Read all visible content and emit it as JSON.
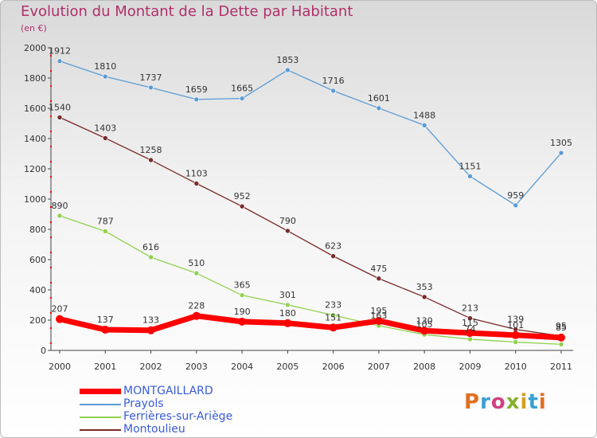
{
  "title": "Evolution du Montant de la Dette par Habitant",
  "subtitle": "(en €)",
  "logo_text": "Proxiti",
  "logo_colors": [
    "#e07020",
    "#3aa0d0",
    "#d04080",
    "#88b030",
    "#d0a020",
    "#3aa0d0",
    "#e07020"
  ],
  "chart_data": {
    "type": "line",
    "x": [
      "2000",
      "2001",
      "2002",
      "2003",
      "2004",
      "2005",
      "2006",
      "2007",
      "2008",
      "2009",
      "2010",
      "2011"
    ],
    "ylim": [
      0,
      2000
    ],
    "yticks": [
      "0",
      "200",
      "400",
      "600",
      "800",
      "1000",
      "1200",
      "1400",
      "1600",
      "1800",
      "2000"
    ],
    "grid": false,
    "legend_position": "bottom-left",
    "series": [
      {
        "name": "MONTGAILLARD",
        "color": "#ff0000",
        "values": [
          207,
          137,
          133,
          228,
          190,
          180,
          151,
          195,
          130,
          115,
          101,
          85
        ],
        "labels": [
          "207",
          "137",
          "133",
          "228",
          "190",
          "180",
          "151",
          "195",
          "130",
          "115",
          "101",
          "85"
        ]
      },
      {
        "name": "Prayols",
        "color": "#5b9bd5",
        "values": [
          1912,
          1810,
          1737,
          1659,
          1665,
          1853,
          1716,
          1601,
          1488,
          1151,
          959,
          1305
        ],
        "labels": [
          "1912",
          "1810",
          "1737",
          "1659",
          "1665",
          "1853",
          "1716",
          "1601",
          "1488",
          "1151",
          "959",
          "1305"
        ]
      },
      {
        "name": "Ferrières-sur-Ariège",
        "color": "#8fd14f",
        "values": [
          890,
          787,
          616,
          510,
          365,
          301,
          233,
          163,
          105,
          74,
          55,
          40
        ],
        "labels": [
          "890",
          "787",
          "616",
          "510",
          "365",
          "301",
          "233",
          "163",
          "105",
          "74",
          "",
          ""
        ]
      },
      {
        "name": "Montoulieu",
        "color": "#7a2a2a",
        "values": [
          1540,
          1403,
          1258,
          1103,
          952,
          790,
          623,
          475,
          353,
          213,
          139,
          95
        ],
        "labels": [
          "1540",
          "1403",
          "1258",
          "1103",
          "952",
          "790",
          "623",
          "475",
          "353",
          "213",
          "139",
          "95"
        ]
      }
    ]
  }
}
